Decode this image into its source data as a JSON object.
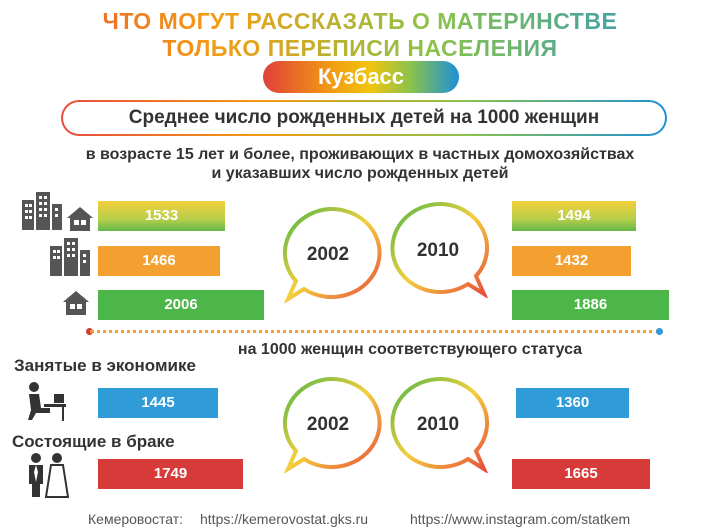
{
  "header": {
    "title_line1": "ЧТО МОГУТ РАССКАЗАТЬ О МАТЕРИНСТВЕ",
    "title_line2": "ТОЛЬКО ПЕРЕПИСИ НАСЕЛЕНИЯ",
    "region": "Кузбасс",
    "subtitle": "Среднее число рожденных детей на 1000 женщин",
    "note_line1": "в возрасте 15 лет и более, проживающих в частных домохозяйствах",
    "note_line2": "и указавших число рожденных детей",
    "note_status": "на 1000 женщин соответствующего статуса"
  },
  "icons": {
    "row1": [
      "city-buildings-icon",
      "house-icon"
    ],
    "row2": [
      "city-buildings-icon"
    ],
    "row3": [
      "house-icon"
    ],
    "employed": "office-worker-icon",
    "married": "wedding-couple-icon"
  },
  "labels": {
    "employed": "Занятые в экономике",
    "married": "Состоящие в браке"
  },
  "colors": {
    "orange": "#f4a030",
    "green": "#4cb748",
    "blue": "#2f9cd8",
    "red": "#d63b3a",
    "yellow_gradient": "#f4cf3c"
  },
  "chart_data": [
    {
      "type": "bar",
      "years": [
        "2002",
        "2010"
      ],
      "series": [
        {
          "values": [
            1533,
            1494
          ]
        },
        {
          "values": [
            1466,
            1432
          ]
        },
        {
          "values": [
            2006,
            1886
          ]
        }
      ]
    },
    {
      "type": "bar",
      "years": [
        "2002",
        "2010"
      ],
      "series": [
        {
          "name": "Занятые в экономике",
          "values": [
            1445,
            1360
          ]
        },
        {
          "name": "Состоящие в браке",
          "values": [
            1749,
            1665
          ]
        }
      ]
    }
  ],
  "footer": {
    "org": "Кемеровостат:",
    "site": "https://kemerovostat.gks.ru",
    "instagram": "https://www.instagram.com/statkem"
  }
}
